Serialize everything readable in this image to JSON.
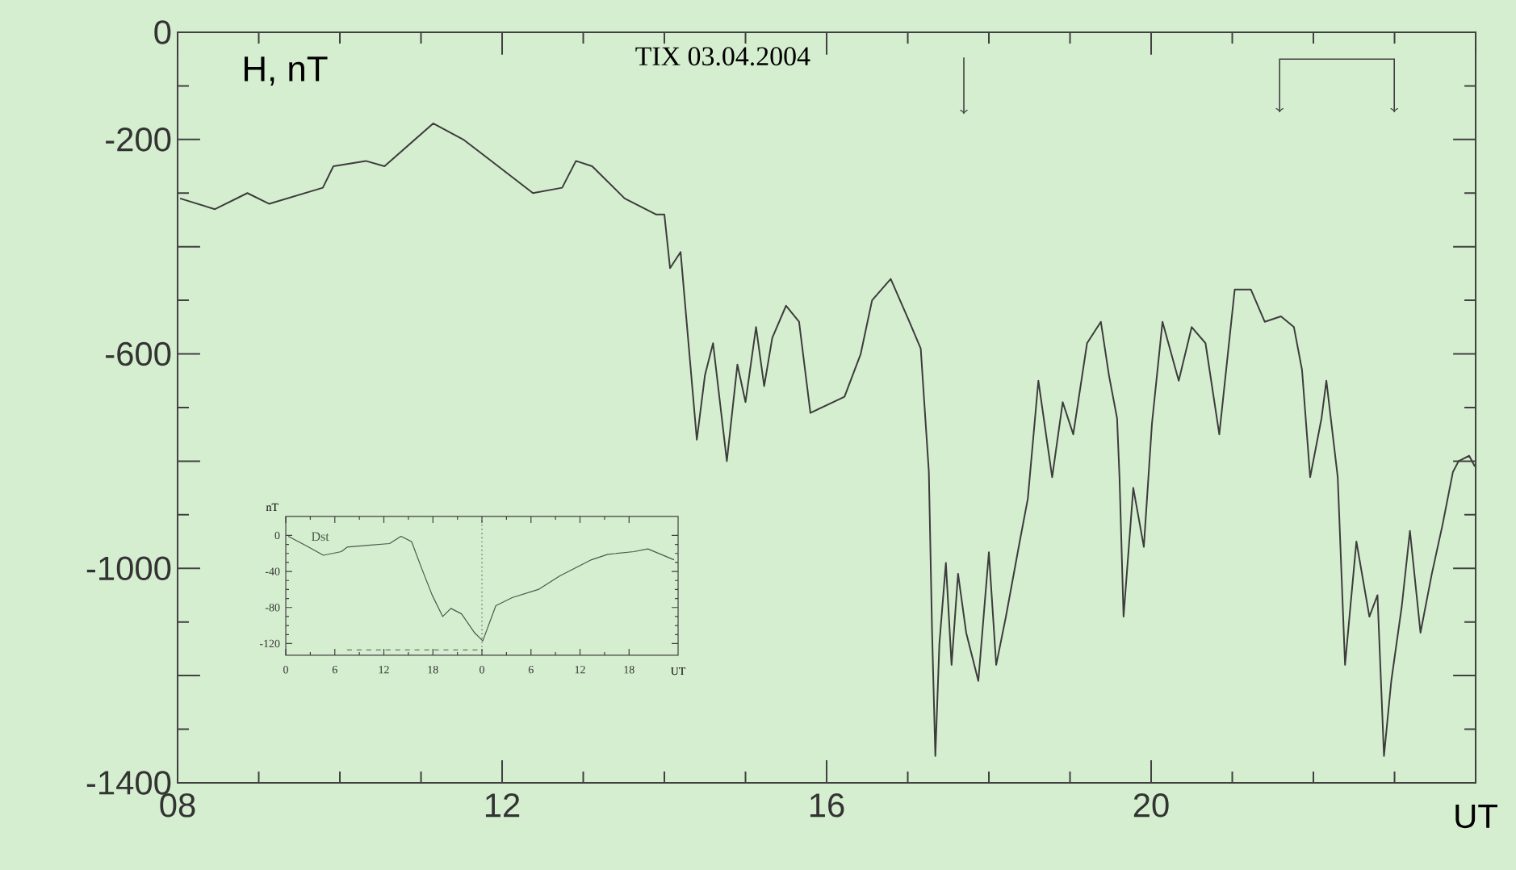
{
  "chart_data": [
    {
      "type": "line",
      "title": "TIX 03.04.2004",
      "ylabel": "H, nT",
      "xlabel": "UT",
      "xlim": [
        8,
        24
      ],
      "ylim": [
        -1400,
        0
      ],
      "xticks": [
        {
          "value": 8,
          "label": "08"
        },
        12,
        16,
        20,
        {
          "value": 24,
          "label": null
        }
      ],
      "yticks": [
        0,
        -200,
        {
          "value": -400,
          "label": null
        },
        -600,
        {
          "value": -800,
          "label": null
        },
        -1000,
        {
          "value": -1200,
          "label": null
        },
        -1400
      ],
      "series": [
        {
          "color": "#3c3c3c",
          "x": [
            8.03,
            8.46,
            8.86,
            9.13,
            9.79,
            9.92,
            10.32,
            10.55,
            11.15,
            11.52,
            11.78,
            12.38,
            12.74,
            12.91,
            13.11,
            13.51,
            13.9,
            14.0,
            14.07,
            14.2,
            14.4,
            14.5,
            14.6,
            14.77,
            14.9,
            15.0,
            15.13,
            15.23,
            15.33,
            15.5,
            15.66,
            15.8,
            16.22,
            16.42,
            16.56,
            16.79,
            17.02,
            17.16,
            17.26,
            17.3,
            17.34,
            17.39,
            17.47,
            17.54,
            17.62,
            17.72,
            17.87,
            18.0,
            18.09,
            18.21,
            18.38,
            18.48,
            18.61,
            18.78,
            18.91,
            19.04,
            19.21,
            19.38,
            19.48,
            19.58,
            19.61,
            19.66,
            19.78,
            19.91,
            20.01,
            20.14,
            20.34,
            20.5,
            20.67,
            20.84,
            21.03,
            21.23,
            21.4,
            21.6,
            21.76,
            21.86,
            21.96,
            22.1,
            22.16,
            22.3,
            22.39,
            22.53,
            22.69,
            22.79,
            22.87,
            22.96,
            23.09,
            23.19,
            23.32,
            23.46,
            23.59,
            23.72,
            23.79,
            23.92,
            23.99
          ],
          "values": [
            -310,
            -330,
            -300,
            -320,
            -290,
            -250,
            -240,
            -250,
            -170,
            -200,
            -230,
            -300,
            -290,
            -240,
            -250,
            -310,
            -340,
            -340,
            -440,
            -410,
            -760,
            -640,
            -580,
            -800,
            -620,
            -690,
            -550,
            -660,
            -570,
            -510,
            -540,
            -710,
            -680,
            -600,
            -500,
            -460,
            -540,
            -590,
            -820,
            -1120,
            -1350,
            -1140,
            -990,
            -1180,
            -1010,
            -1120,
            -1210,
            -970,
            -1180,
            -1090,
            -950,
            -870,
            -650,
            -830,
            -690,
            -750,
            -580,
            -540,
            -640,
            -720,
            -830,
            -1090,
            -850,
            -960,
            -730,
            -540,
            -650,
            -550,
            -580,
            -750,
            -480,
            -480,
            -540,
            -530,
            -550,
            -630,
            -830,
            -720,
            -650,
            -830,
            -1180,
            -950,
            -1090,
            -1050,
            -1350,
            -1210,
            -1070,
            -930,
            -1120,
            -1010,
            -920,
            -820,
            -800,
            -790,
            -810
          ]
        }
      ]
    },
    {
      "type": "line",
      "ylabel": "nT",
      "xlabel": "UT",
      "xlim": [
        "2004-04-03T00:00",
        "2004-04-05T00:00"
      ],
      "ylim": [
        -133,
        21
      ],
      "xticks": [
        {
          "value": "2004-04-03T00:00",
          "label": "0"
        },
        {
          "value": "2004-04-03T06:00",
          "label": "6"
        },
        {
          "value": "2004-04-03T12:00",
          "label": "12"
        },
        {
          "value": "2004-04-03T18:00",
          "label": "18"
        },
        {
          "value": "2004-04-04T00:00",
          "label": "0"
        },
        {
          "value": "2004-04-04T06:00",
          "label": "6"
        },
        {
          "value": "2004-04-04T12:00",
          "label": "12"
        },
        {
          "value": "2004-04-04T18:00",
          "label": "18"
        }
      ],
      "yticks": [
        0,
        -40,
        -80,
        -120
      ],
      "ref_lines": [
        {
          "axis": "x",
          "value": "2004-04-04T00:00",
          "line_style": "dotted"
        }
      ],
      "series": [
        {
          "name": "Dst",
          "color": "#4a584a",
          "x": [
            "2004-04-03T00:18",
            "2004-04-03T02:36",
            "2004-04-03T04:36",
            "2004-04-03T06:48",
            "2004-04-03T07:30",
            "2004-04-03T10:06",
            "2004-04-03T12:42",
            "2004-04-03T14:06",
            "2004-04-03T15:24",
            "2004-04-03T16:36",
            "2004-04-03T17:54",
            "2004-04-03T19:12",
            "2004-04-03T20:12",
            "2004-04-03T21:30",
            "2004-04-03T23:06",
            "2004-04-04T00:06",
            "2004-04-04T01:42",
            "2004-04-04T03:42",
            "2004-04-04T06:54",
            "2004-04-04T09:30",
            "2004-04-04T13:24",
            "2004-04-04T15:24",
            "2004-04-04T18:36",
            "2004-04-04T20:18",
            "2004-04-04T23:30"
          ],
          "values": [
            -1,
            -12,
            -22,
            -18,
            -13,
            -11,
            -9,
            -1,
            -7,
            -36,
            -66,
            -90,
            -81,
            -87,
            -108,
            -117,
            -78,
            -69,
            -60,
            -45,
            -27,
            -21,
            -18,
            -15,
            -27
          ]
        },
        {
          "color": "#4a584a",
          "line_style": "dashed",
          "x": [
            "2004-04-03T07:30",
            "2004-04-04T00:00"
          ],
          "values": [
            -127,
            -127
          ]
        }
      ]
    }
  ]
}
